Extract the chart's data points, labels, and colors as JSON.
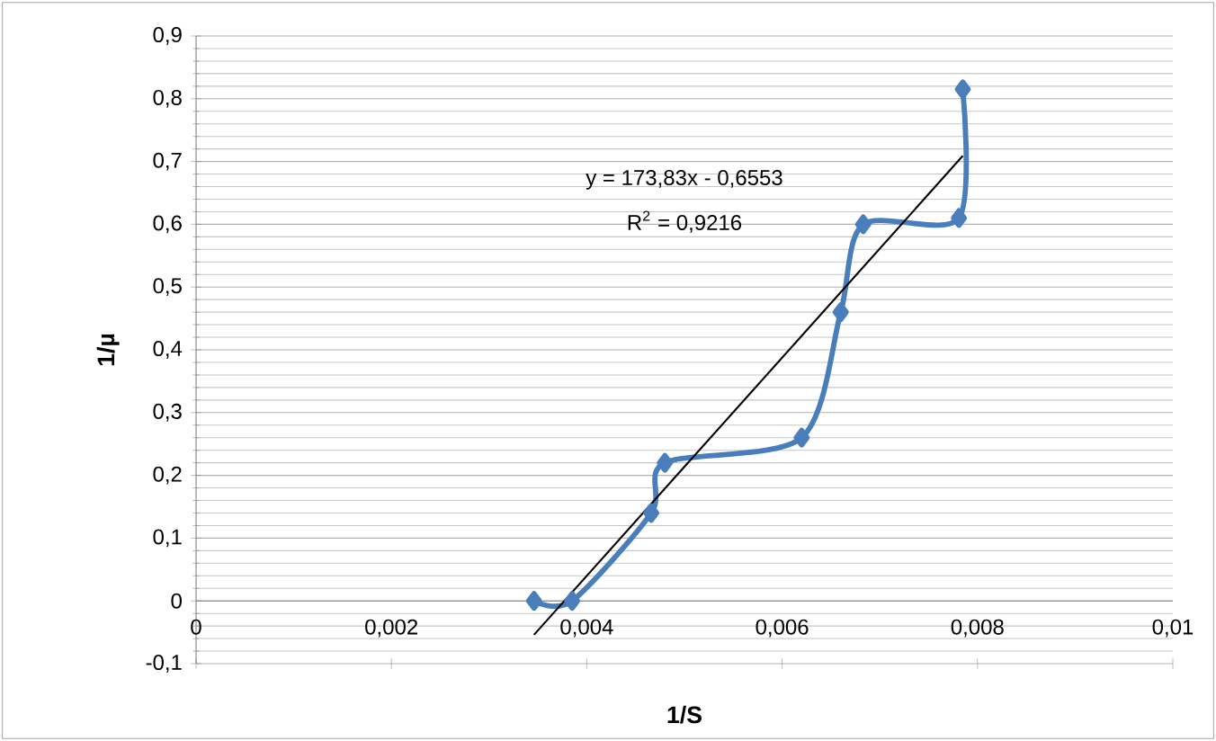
{
  "chart_data": {
    "type": "line",
    "xlabel": "1/S",
    "ylabel": "1/µ",
    "series": [
      {
        "color": "#4a7ebb",
        "marker": "diamond",
        "x": [
          0.00346,
          0.00385,
          0.00466,
          0.0048,
          0.0062,
          0.0066,
          0.00683,
          0.00781,
          0.00785
        ],
        "values": [
          0,
          0,
          0.14,
          0.22,
          0.26,
          0.46,
          0.6,
          0.61,
          0.815
        ]
      },
      {
        "color": "#000000",
        "marker": "none",
        "x": [
          0.00346,
          0.00785
        ],
        "values": [
          -0.054,
          0.709
        ]
      }
    ],
    "xlim": [
      0,
      0.01
    ],
    "ylim": [
      -0.1,
      0.9
    ],
    "xticks": [
      {
        "value": 0,
        "label": "0"
      },
      {
        "value": 0.002,
        "label": "0,002"
      },
      {
        "value": 0.004,
        "label": "0,004"
      },
      {
        "value": 0.006,
        "label": "0,006"
      },
      {
        "value": 0.008,
        "label": "0,008"
      },
      {
        "value": 0.01,
        "label": "0,01"
      }
    ],
    "yticks": [
      {
        "value": -0.1,
        "label": "-0,1"
      },
      {
        "value": 0,
        "label": "0"
      },
      {
        "value": 0.1,
        "label": "0,1"
      },
      {
        "value": 0.2,
        "label": "0,2"
      },
      {
        "value": 0.3,
        "label": "0,3"
      },
      {
        "value": 0.4,
        "label": "0,4"
      },
      {
        "value": 0.5,
        "label": "0,5"
      },
      {
        "value": 0.6,
        "label": "0,6"
      },
      {
        "value": 0.7,
        "label": "0,7"
      },
      {
        "value": 0.8,
        "label": "0,8"
      },
      {
        "value": 0.9,
        "label": "0,9"
      }
    ],
    "grid": "y",
    "annotations": [
      "y = 173,83x - 0,6553",
      "R$^{2}$ = 0,9216"
    ]
  }
}
